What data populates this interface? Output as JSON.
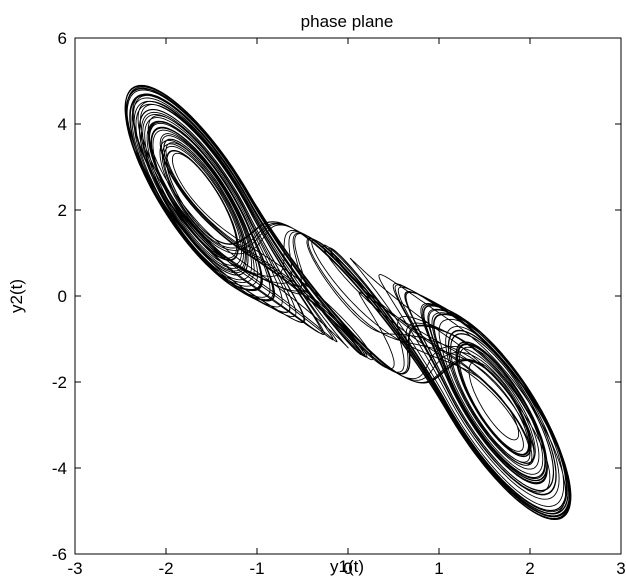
{
  "chart_data": {
    "type": "line",
    "title": "phase plane",
    "xlabel": "y1(t)",
    "ylabel": "y2(t)",
    "xlim": [
      -3,
      3
    ],
    "ylim": [
      -6,
      6
    ],
    "xticks": [
      -3,
      -2,
      -1,
      0,
      1,
      2,
      3
    ],
    "yticks": [
      -6,
      -4,
      -2,
      0,
      2,
      4,
      6
    ],
    "xtick_labels": [
      "-3",
      "-2",
      "-1",
      "0",
      "1",
      "2",
      "3"
    ],
    "ytick_labels": [
      "-6",
      "-4",
      "-2",
      "0",
      "2",
      "4",
      "6"
    ],
    "grid": false,
    "line_color": "#000000",
    "description_values": {
      "left_focus": [
        -1.55,
        0.0
      ],
      "right_focus": [
        1.4,
        0.0
      ],
      "x_extent": [
        -2.45,
        2.45
      ],
      "y_extent": [
        -5.2,
        4.9
      ]
    }
  }
}
